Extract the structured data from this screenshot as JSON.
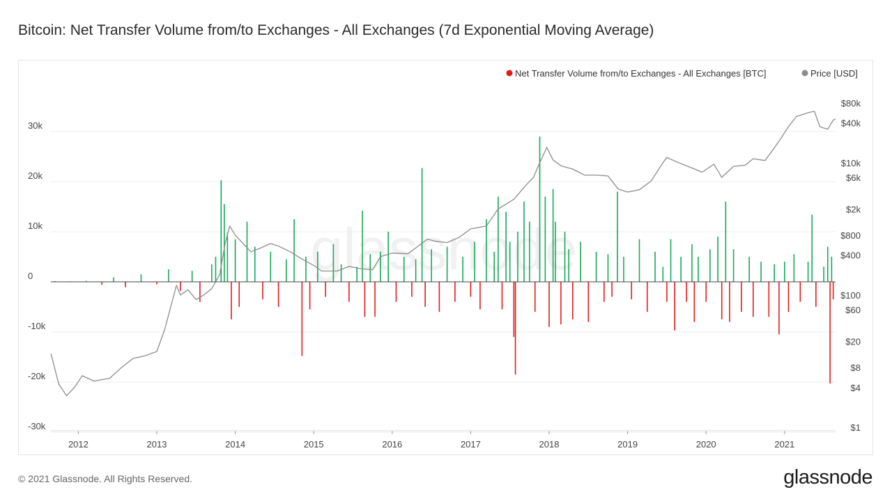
{
  "header": {
    "title": "Bitcoin: Net Transfer Volume from/to Exchanges - All Exchanges (7d Exponential Moving Average)"
  },
  "footer": {
    "copyright": "© 2021 Glassnode. All Rights Reserved.",
    "brand": "glassnode"
  },
  "watermark": "glassnode",
  "colors": {
    "positive": "#14a85a",
    "negative": "#e5191c",
    "price": "#8c8c8c",
    "grid": "#ececec"
  },
  "chart_data": {
    "type": "bar",
    "title": "Bitcoin: Net Transfer Volume from/to Exchanges - All Exchanges (7d Exponential Moving Average)",
    "legend": {
      "placement": "top-right",
      "entries": [
        {
          "name": "Net Transfer Volume from/to Exchanges - All Exchanges [BTC]",
          "color": "#e5191c",
          "marker": "dot"
        },
        {
          "name": "Price [USD]",
          "color": "#8c8c8c",
          "marker": "dot"
        }
      ]
    },
    "x_ticks": [
      "2012",
      "2013",
      "2014",
      "2015",
      "2016",
      "2017",
      "2018",
      "2019",
      "2020",
      "2021"
    ],
    "x_range": [
      2011.65,
      2021.65
    ],
    "y_left": {
      "ticks": [
        {
          "v": 30000,
          "label": "30k"
        },
        {
          "v": 20000,
          "label": "20k"
        },
        {
          "v": 10000,
          "label": "10k"
        },
        {
          "v": 0,
          "label": "0"
        },
        {
          "v": -10000,
          "label": "-10k"
        },
        {
          "v": -20000,
          "label": "-20k"
        },
        {
          "v": -30000,
          "label": "-30k"
        }
      ]
    },
    "y_right": {
      "scale": "log",
      "range": [
        1,
        100000
      ],
      "ticks": [
        {
          "v": 80000,
          "label": "$80k"
        },
        {
          "v": 40000,
          "label": "$40k"
        },
        {
          "v": 10000,
          "label": "$10k"
        },
        {
          "v": 6000,
          "label": "$6k"
        },
        {
          "v": 2000,
          "label": "$2k"
        },
        {
          "v": 800,
          "label": "$800"
        },
        {
          "v": 400,
          "label": "$400"
        },
        {
          "v": 100,
          "label": "$100"
        },
        {
          "v": 60,
          "label": "$60"
        },
        {
          "v": 20,
          "label": "$20"
        },
        {
          "v": 8,
          "label": "$8"
        },
        {
          "v": 4,
          "label": "$4"
        },
        {
          "v": 1,
          "label": "$1"
        }
      ]
    },
    "series": [
      {
        "name": "Net Transfer Volume from/to Exchanges - All Exchanges [BTC]",
        "type": "bar",
        "points": [
          [
            2011.7,
            150
          ],
          [
            2011.9,
            100
          ],
          [
            2012.1,
            200
          ],
          [
            2012.3,
            -600
          ],
          [
            2012.45,
            900
          ],
          [
            2012.6,
            -1100
          ],
          [
            2012.8,
            1500
          ],
          [
            2013.0,
            -500
          ],
          [
            2013.15,
            2500
          ],
          [
            2013.3,
            -1800
          ],
          [
            2013.45,
            2200
          ],
          [
            2013.55,
            -4000
          ],
          [
            2013.7,
            3500
          ],
          [
            2013.75,
            5000
          ],
          [
            2013.82,
            20300
          ],
          [
            2013.86,
            15500
          ],
          [
            2013.9,
            9800
          ],
          [
            2013.95,
            -7500
          ],
          [
            2014.0,
            8500
          ],
          [
            2014.05,
            -5000
          ],
          [
            2014.15,
            12000
          ],
          [
            2014.25,
            7000
          ],
          [
            2014.35,
            -3500
          ],
          [
            2014.45,
            6000
          ],
          [
            2014.55,
            -5000
          ],
          [
            2014.65,
            4500
          ],
          [
            2014.75,
            12500
          ],
          [
            2014.85,
            -14800
          ],
          [
            2014.9,
            5000
          ],
          [
            2014.95,
            -5500
          ],
          [
            2015.05,
            6000
          ],
          [
            2015.15,
            -3000
          ],
          [
            2015.25,
            7500
          ],
          [
            2015.35,
            3500
          ],
          [
            2015.45,
            -4000
          ],
          [
            2015.55,
            3000
          ],
          [
            2015.62,
            14200
          ],
          [
            2015.65,
            -7000
          ],
          [
            2015.72,
            5500
          ],
          [
            2015.78,
            -7000
          ],
          [
            2015.85,
            6000
          ],
          [
            2015.95,
            10000
          ],
          [
            2016.05,
            -4000
          ],
          [
            2016.15,
            5000
          ],
          [
            2016.25,
            -3000
          ],
          [
            2016.3,
            4500
          ],
          [
            2016.38,
            22700
          ],
          [
            2016.42,
            -5000
          ],
          [
            2016.5,
            6500
          ],
          [
            2016.6,
            -6000
          ],
          [
            2016.7,
            7000
          ],
          [
            2016.8,
            -4000
          ],
          [
            2016.9,
            5000
          ],
          [
            2017.0,
            -3000
          ],
          [
            2017.05,
            8000
          ],
          [
            2017.12,
            -5500
          ],
          [
            2017.2,
            12500
          ],
          [
            2017.3,
            6000
          ],
          [
            2017.35,
            17000
          ],
          [
            2017.4,
            -5500
          ],
          [
            2017.45,
            14000
          ],
          [
            2017.5,
            8000
          ],
          [
            2017.55,
            -11000
          ],
          [
            2017.57,
            -18500
          ],
          [
            2017.6,
            10000
          ],
          [
            2017.68,
            16000
          ],
          [
            2017.75,
            12000
          ],
          [
            2017.82,
            -6000
          ],
          [
            2017.88,
            29000
          ],
          [
            2017.95,
            17000
          ],
          [
            2018.0,
            -9000
          ],
          [
            2018.05,
            18500
          ],
          [
            2018.08,
            12000
          ],
          [
            2018.15,
            -8500
          ],
          [
            2018.2,
            10000
          ],
          [
            2018.25,
            6500
          ],
          [
            2018.3,
            -7500
          ],
          [
            2018.4,
            8000
          ],
          [
            2018.5,
            -8000
          ],
          [
            2018.6,
            6000
          ],
          [
            2018.7,
            -4000
          ],
          [
            2018.75,
            5500
          ],
          [
            2018.8,
            -3000
          ],
          [
            2018.87,
            18000
          ],
          [
            2018.95,
            5000
          ],
          [
            2019.05,
            -3500
          ],
          [
            2019.15,
            8500
          ],
          [
            2019.25,
            -6000
          ],
          [
            2019.35,
            6000
          ],
          [
            2019.45,
            3000
          ],
          [
            2019.5,
            -4000
          ],
          [
            2019.55,
            8500
          ],
          [
            2019.6,
            -9700
          ],
          [
            2019.68,
            5000
          ],
          [
            2019.75,
            -4000
          ],
          [
            2019.82,
            7500
          ],
          [
            2019.85,
            -8000
          ],
          [
            2019.9,
            5000
          ],
          [
            2020.0,
            -4000
          ],
          [
            2020.05,
            6500
          ],
          [
            2020.15,
            9000
          ],
          [
            2020.2,
            -7500
          ],
          [
            2020.25,
            16000
          ],
          [
            2020.3,
            -8000
          ],
          [
            2020.35,
            6500
          ],
          [
            2020.45,
            -6000
          ],
          [
            2020.55,
            5000
          ],
          [
            2020.6,
            -7000
          ],
          [
            2020.7,
            4000
          ],
          [
            2020.8,
            -7000
          ],
          [
            2020.87,
            3500
          ],
          [
            2020.93,
            -10500
          ],
          [
            2021.0,
            4000
          ],
          [
            2021.05,
            -6000
          ],
          [
            2021.12,
            5500
          ],
          [
            2021.2,
            -4000
          ],
          [
            2021.3,
            4000
          ],
          [
            2021.35,
            13400
          ],
          [
            2021.4,
            -5000
          ],
          [
            2021.5,
            3000
          ],
          [
            2021.55,
            7000
          ],
          [
            2021.58,
            -20300
          ],
          [
            2021.6,
            5000
          ],
          [
            2021.62,
            -3500
          ]
        ]
      },
      {
        "name": "Price [USD]",
        "type": "line",
        "points": [
          [
            2011.65,
            13
          ],
          [
            2011.75,
            4.5
          ],
          [
            2011.85,
            3
          ],
          [
            2011.95,
            4
          ],
          [
            2012.05,
            6
          ],
          [
            2012.2,
            5
          ],
          [
            2012.4,
            5.5
          ],
          [
            2012.55,
            8
          ],
          [
            2012.7,
            11
          ],
          [
            2012.85,
            12
          ],
          [
            2013.0,
            14
          ],
          [
            2013.1,
            30
          ],
          [
            2013.25,
            140
          ],
          [
            2013.3,
            100
          ],
          [
            2013.4,
            120
          ],
          [
            2013.5,
            85
          ],
          [
            2013.6,
            100
          ],
          [
            2013.7,
            125
          ],
          [
            2013.8,
            200
          ],
          [
            2013.87,
            600
          ],
          [
            2013.93,
            1100
          ],
          [
            2014.0,
            800
          ],
          [
            2014.1,
            600
          ],
          [
            2014.2,
            450
          ],
          [
            2014.3,
            500
          ],
          [
            2014.45,
            600
          ],
          [
            2014.55,
            550
          ],
          [
            2014.7,
            450
          ],
          [
            2014.85,
            350
          ],
          [
            2015.0,
            280
          ],
          [
            2015.1,
            230
          ],
          [
            2015.3,
            230
          ],
          [
            2015.45,
            270
          ],
          [
            2015.6,
            250
          ],
          [
            2015.75,
            240
          ],
          [
            2015.85,
            380
          ],
          [
            2016.0,
            430
          ],
          [
            2016.2,
            420
          ],
          [
            2016.45,
            700
          ],
          [
            2016.55,
            650
          ],
          [
            2016.7,
            620
          ],
          [
            2016.85,
            740
          ],
          [
            2017.0,
            1000
          ],
          [
            2017.2,
            1100
          ],
          [
            2017.35,
            2000
          ],
          [
            2017.55,
            2800
          ],
          [
            2017.7,
            4500
          ],
          [
            2017.8,
            6000
          ],
          [
            2017.88,
            10000
          ],
          [
            2017.97,
            17000
          ],
          [
            2018.05,
            11000
          ],
          [
            2018.15,
            9000
          ],
          [
            2018.3,
            8000
          ],
          [
            2018.45,
            6500
          ],
          [
            2018.6,
            6500
          ],
          [
            2018.75,
            6300
          ],
          [
            2018.88,
            4000
          ],
          [
            2019.0,
            3600
          ],
          [
            2019.15,
            3900
          ],
          [
            2019.3,
            5300
          ],
          [
            2019.45,
            10000
          ],
          [
            2019.5,
            12000
          ],
          [
            2019.65,
            10000
          ],
          [
            2019.8,
            8500
          ],
          [
            2019.95,
            7200
          ],
          [
            2020.1,
            9500
          ],
          [
            2020.2,
            6000
          ],
          [
            2020.35,
            8800
          ],
          [
            2020.5,
            9200
          ],
          [
            2020.6,
            11500
          ],
          [
            2020.75,
            10800
          ],
          [
            2020.85,
            15500
          ],
          [
            2020.95,
            23000
          ],
          [
            2021.05,
            35000
          ],
          [
            2021.15,
            50000
          ],
          [
            2021.3,
            57000
          ],
          [
            2021.38,
            60000
          ],
          [
            2021.45,
            35000
          ],
          [
            2021.55,
            32000
          ],
          [
            2021.62,
            44000
          ],
          [
            2021.65,
            46000
          ]
        ]
      }
    ],
    "grid": true
  }
}
